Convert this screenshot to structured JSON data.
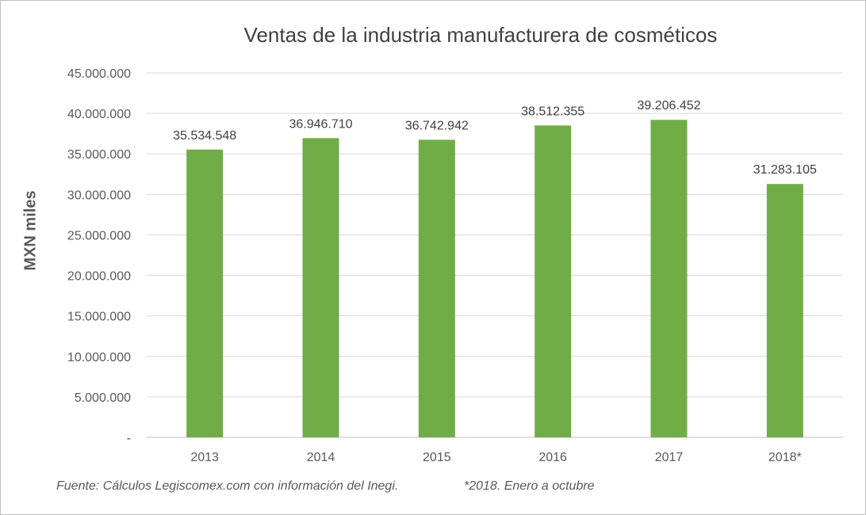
{
  "chart_data": {
    "type": "bar",
    "title": "Ventas de la industria manufacturera de cosméticos",
    "ylabel": "MXN miles",
    "xlabel": "",
    "categories": [
      "2013",
      "2014",
      "2015",
      "2016",
      "2017",
      "2018*"
    ],
    "values": [
      35534548,
      36946710,
      36742942,
      38512355,
      39206452,
      31283105
    ],
    "value_labels": [
      "35.534.548",
      "36.946.710",
      "36.742.942",
      "38.512.355",
      "39.206.452",
      "31.283.105"
    ],
    "ylim": [
      0,
      45000000
    ],
    "yticks": [
      0,
      5000000,
      10000000,
      15000000,
      20000000,
      25000000,
      30000000,
      35000000,
      40000000,
      45000000
    ],
    "ytick_labels": [
      "-",
      "5.000.000",
      "10.000.000",
      "15.000.000",
      "20.000.000",
      "25.000.000",
      "30.000.000",
      "35.000.000",
      "40.000.000",
      "45.000.000"
    ],
    "grid": true,
    "legend": "none",
    "bar_color": "#70ad47"
  },
  "footer": {
    "source": "Fuente: Cálculos Legiscomex.com con información del Inegi.",
    "note": "*2018. Enero a octubre"
  }
}
